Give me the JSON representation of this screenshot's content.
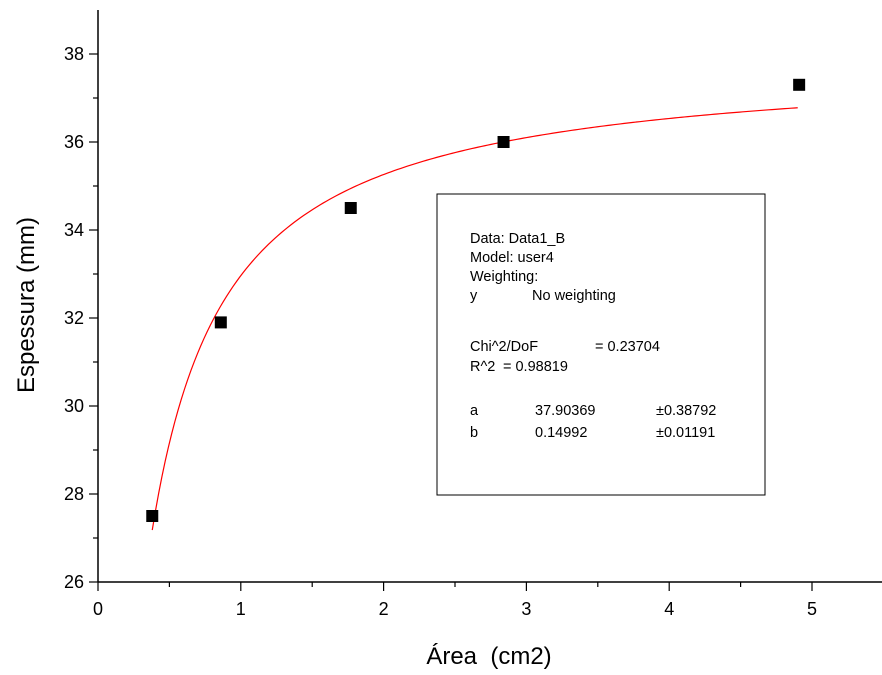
{
  "chart_data": {
    "type": "scatter",
    "xlabel": "Área  (cm2)",
    "ylabel": "Espessura (mm)",
    "xlim": [
      0,
      5.5
    ],
    "ylim": [
      26,
      39
    ],
    "x_ticks": [
      "0",
      "1",
      "2",
      "3",
      "4",
      "5"
    ],
    "y_ticks": [
      "26",
      "28",
      "30",
      "32",
      "34",
      "36",
      "38"
    ],
    "series": [
      {
        "x": [
          0.38,
          0.86,
          1.77,
          2.84,
          4.91
        ],
        "y": [
          27.5,
          31.9,
          34.5,
          36.0,
          37.3
        ]
      }
    ],
    "fit_curve": {
      "a": 37.90369,
      "b": 0.14992,
      "x_range": [
        0.38,
        4.9
      ],
      "color": "#ff0000"
    },
    "marker_color": "#000000",
    "legend_position": "center-right",
    "fit_box": {
      "data_line": "Data: Data1_B",
      "model_line": "Model: user4",
      "weighting_line": "Weighting:",
      "y_label": "y",
      "y_value": "No weighting",
      "chi_label": "Chi^2/DoF",
      "chi_value": "= 0.23704",
      "r2_label": "R^2",
      "r2_value": "=  0.98819",
      "params": [
        {
          "name": "a",
          "value": "37.90369",
          "error": "±0.38792"
        },
        {
          "name": "b",
          "value": "0.14992",
          "error": "±0.01191"
        }
      ]
    }
  }
}
